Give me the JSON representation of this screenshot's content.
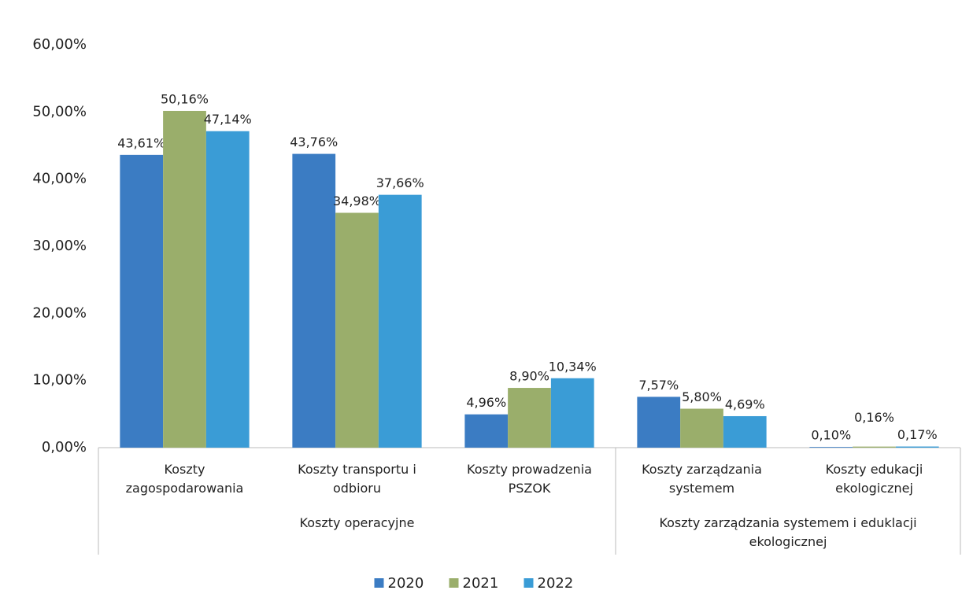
{
  "chart_data": {
    "type": "bar",
    "groups": [
      {
        "name": "Koszty operacyjne",
        "categories": [
          "Koszty zagospodarowania",
          "Koszty transportu i odbioru",
          "Koszty prowadzenia PSZOK"
        ]
      },
      {
        "name": "Koszty zarządzania systemem i eduklacji ekologicznej",
        "categories": [
          "Koszty zarządzania systemem",
          "Koszty edukacji ekologicznej"
        ]
      }
    ],
    "series": [
      {
        "name": "2020",
        "color": "#3b7cc3",
        "values": [
          43.61,
          43.76,
          4.96,
          7.57,
          0.1
        ],
        "value_labels": [
          "43,61%",
          "43,76%",
          "4,96%",
          "7,57%",
          "0,10%"
        ]
      },
      {
        "name": "2021",
        "color": "#9aae6b",
        "values": [
          50.16,
          34.98,
          8.9,
          5.8,
          0.16
        ],
        "value_labels": [
          "50,16%",
          "34,98%",
          "8,90%",
          "5,80%",
          "0,16%"
        ]
      },
      {
        "name": "2022",
        "color": "#3a9cd6",
        "values": [
          47.14,
          37.66,
          10.34,
          4.69,
          0.17
        ],
        "value_labels": [
          "47,14%",
          "37,66%",
          "10,34%",
          "4,69%",
          "0,17%"
        ]
      }
    ],
    "ylim": [
      0,
      60
    ],
    "yticks": [
      {
        "value": 0,
        "label": "0,00%"
      },
      {
        "value": 10,
        "label": "10,00%"
      },
      {
        "value": 20,
        "label": "20,00%"
      },
      {
        "value": 30,
        "label": "30,00%"
      },
      {
        "value": 40,
        "label": "40,00%"
      },
      {
        "value": 50,
        "label": "50,00%"
      },
      {
        "value": 60,
        "label": "60,00%"
      }
    ],
    "grid": false,
    "legend": "bottom"
  }
}
